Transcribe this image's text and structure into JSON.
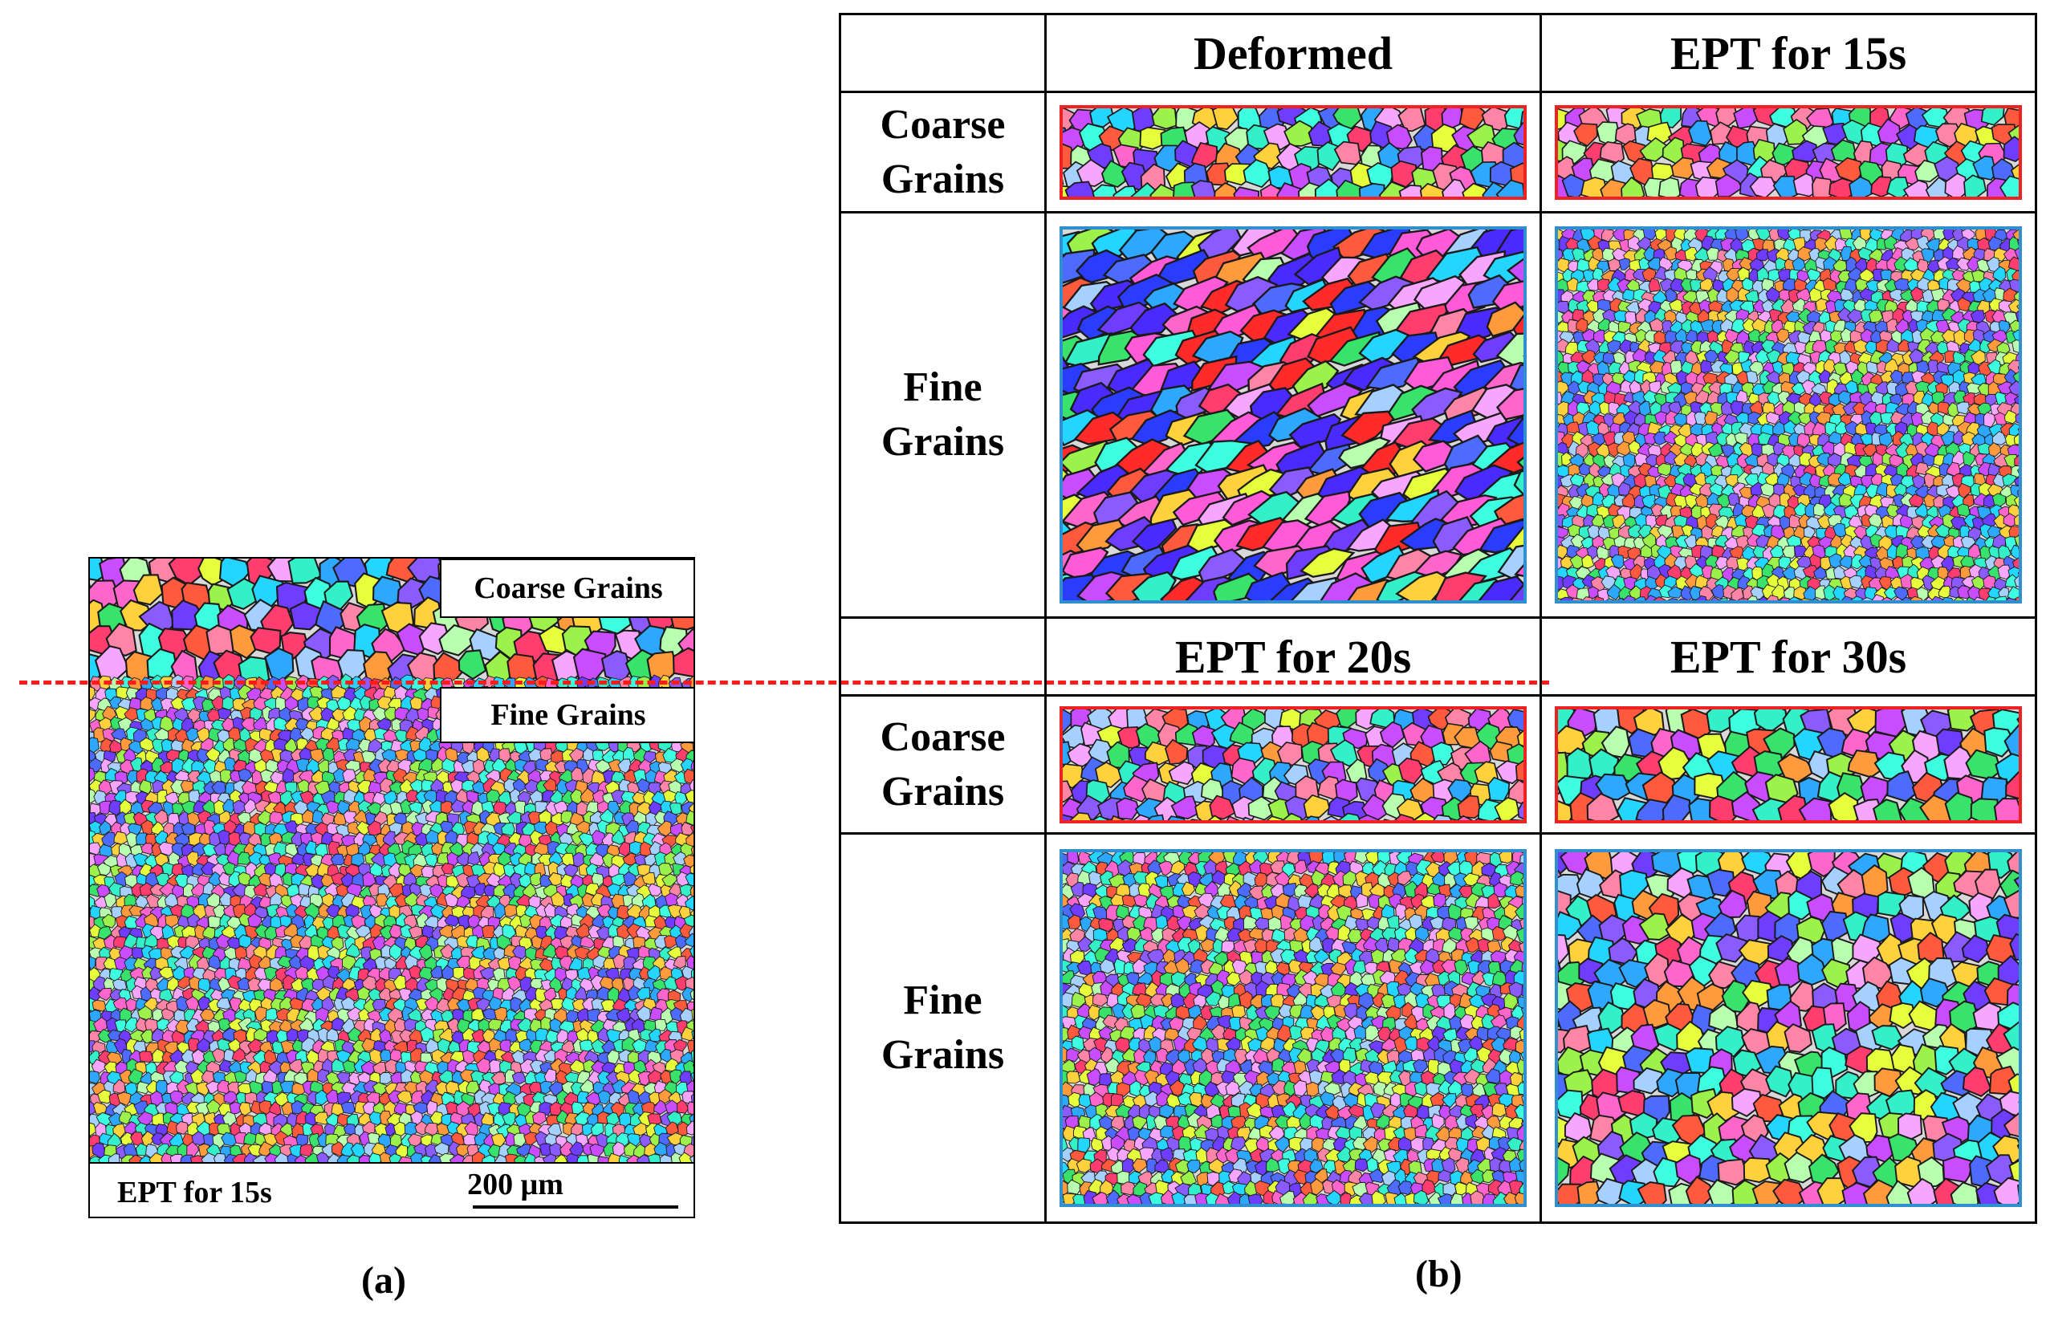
{
  "panel_a": {
    "coarse_label": "Coarse Grains",
    "fine_label": "Fine Grains",
    "condition": "EPT for 15s",
    "scale_bar": "200 μm",
    "fig_label": "(a)",
    "boundary_color": "#ff1a1a"
  },
  "panel_b": {
    "fig_label": "(b)",
    "row1_headers": [
      "Deformed",
      "EPT for 15s"
    ],
    "row2_headers": [
      "EPT for 20s",
      "EPT for 30s"
    ],
    "coarse_line1": "Coarse",
    "coarse_line2": "Grains",
    "fine_line1": "Fine",
    "fine_line2": "Grains",
    "coarse_frame_color": "#ee2222",
    "fine_frame_color": "#2f8fcf"
  }
}
